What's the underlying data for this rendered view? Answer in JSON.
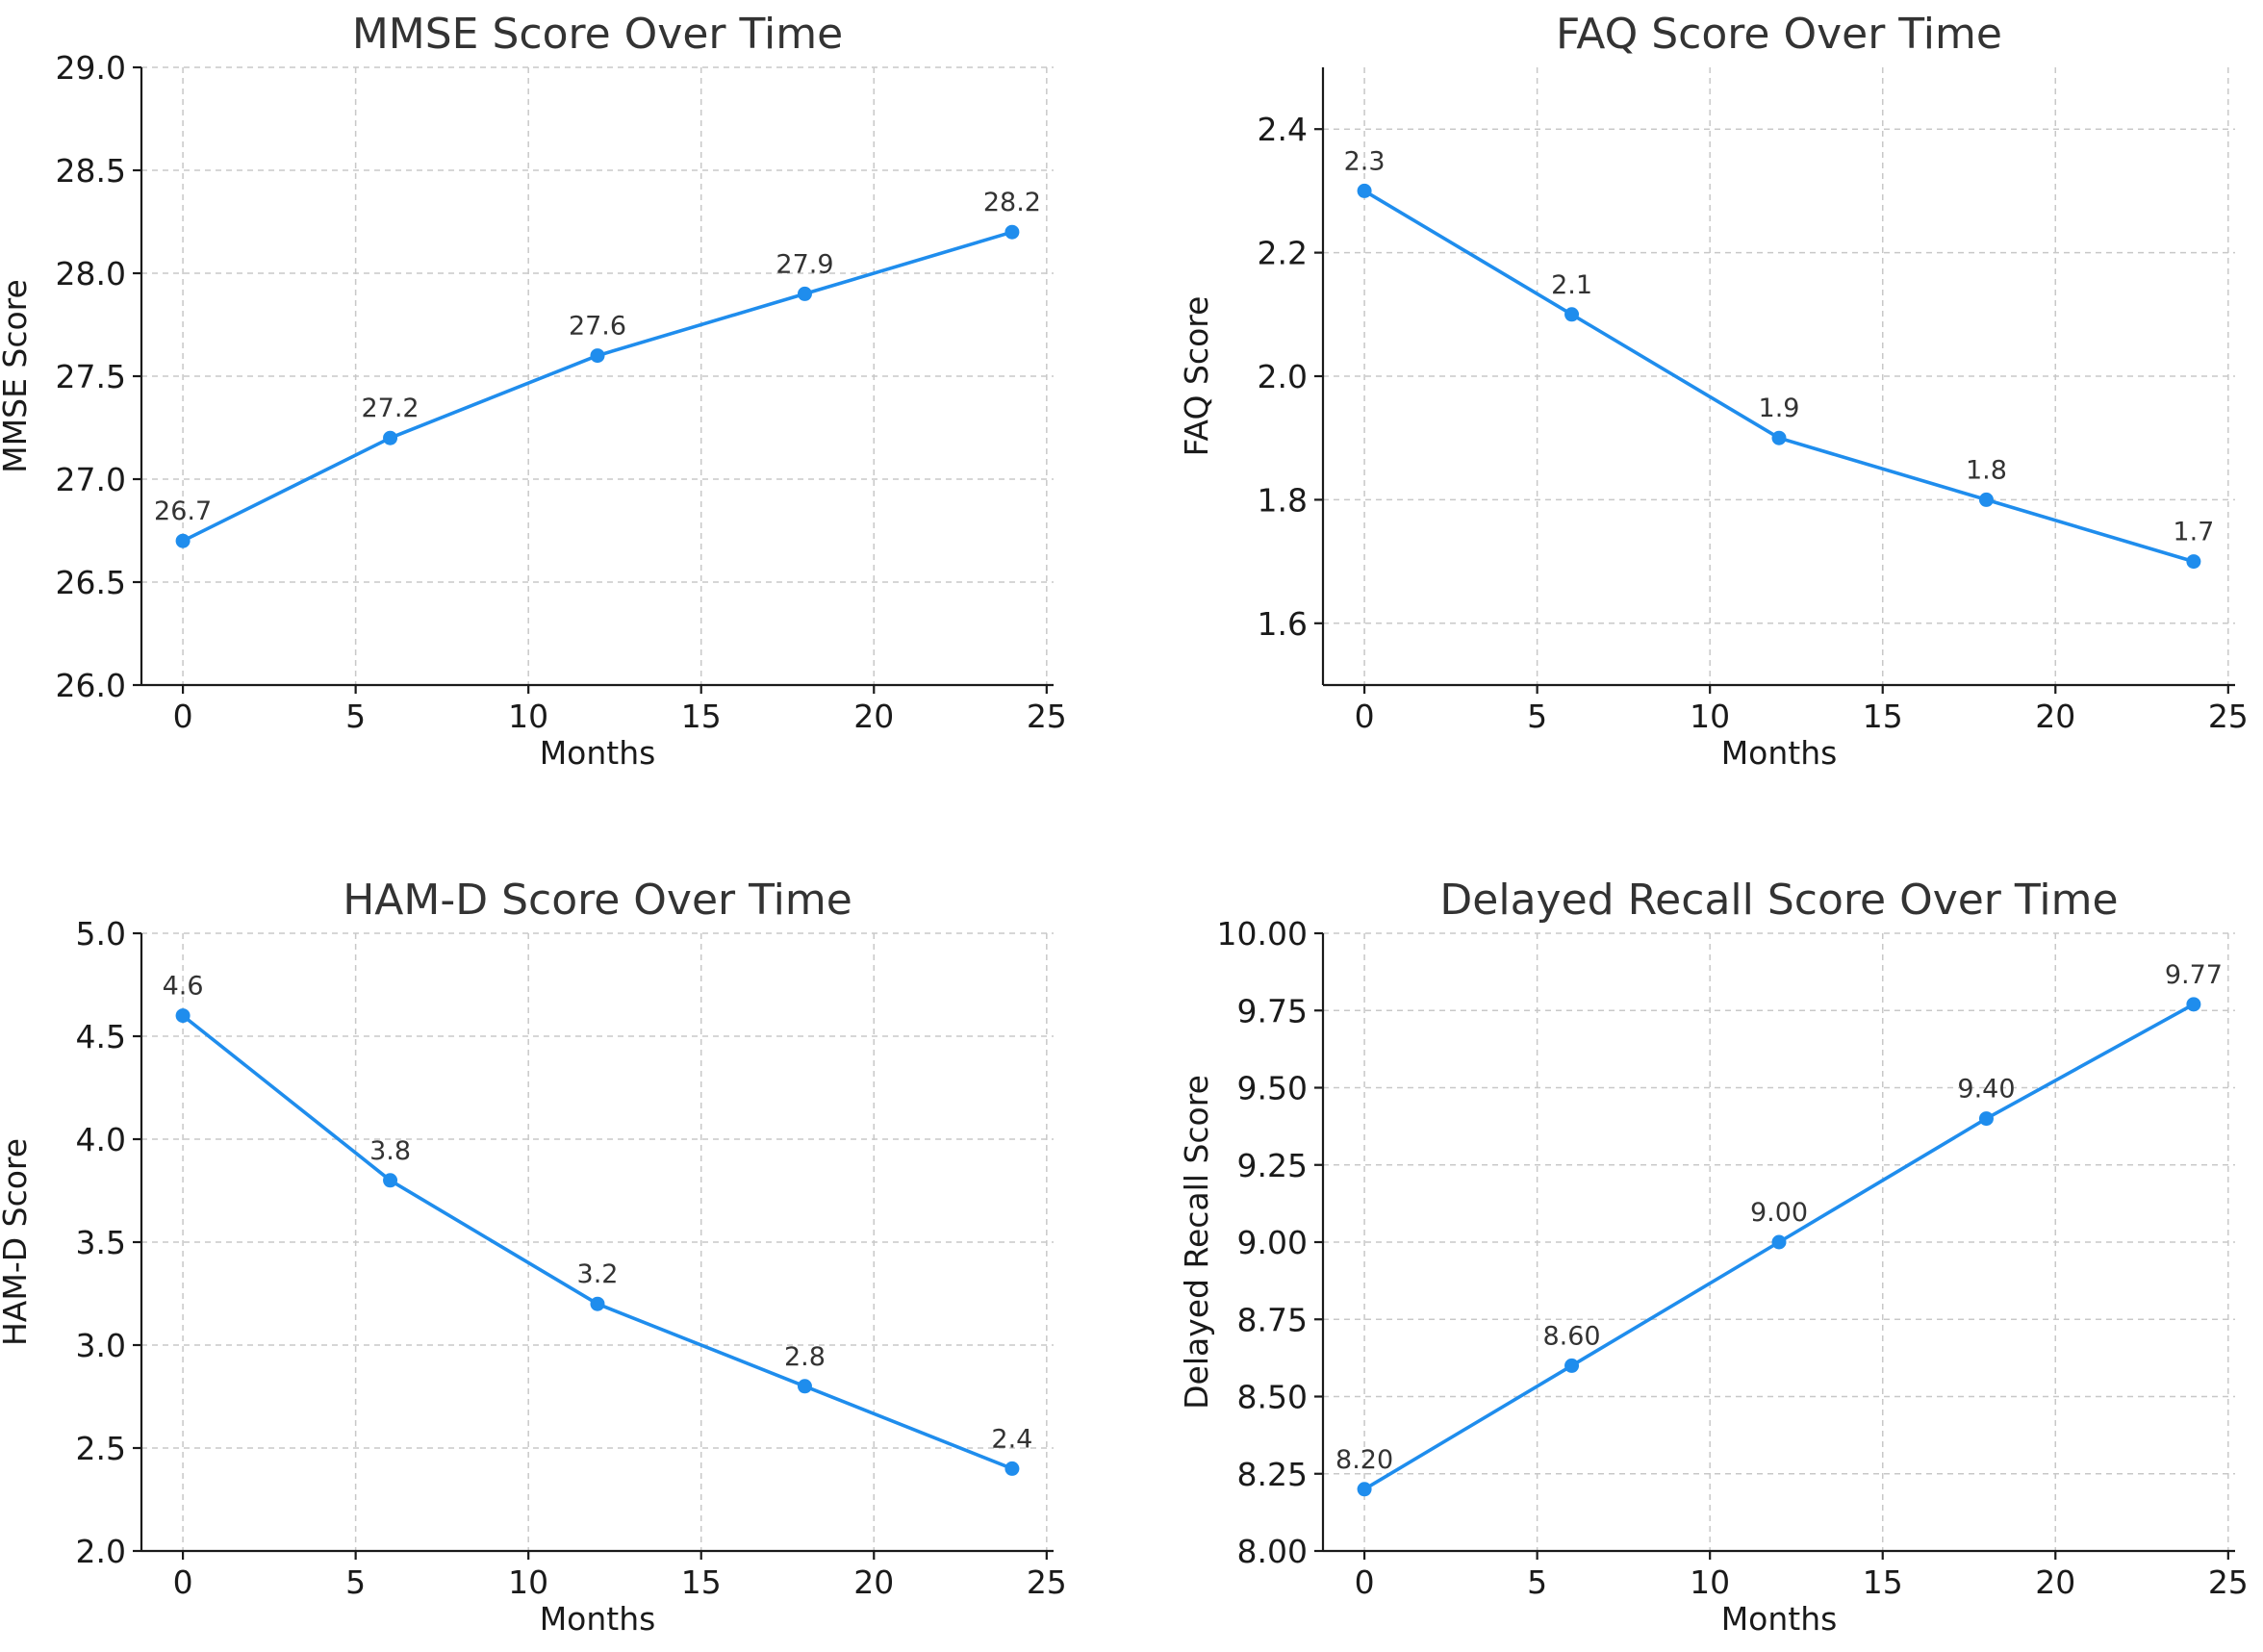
{
  "chart_data": [
    {
      "type": "line",
      "title": "MMSE Score Over Time",
      "xlabel": "Months",
      "ylabel": "MMSE Score",
      "x": [
        0,
        6,
        12,
        18,
        24
      ],
      "series": [
        {
          "values": [
            26.7,
            27.2,
            27.6,
            27.9,
            28.2
          ]
        }
      ],
      "data_labels": [
        "26.7",
        "27.2",
        "27.6",
        "27.9",
        "28.2"
      ],
      "xlim": [
        -1.2,
        25.2
      ],
      "ylim": [
        26.0,
        29.0
      ],
      "xticks": [
        0,
        5,
        10,
        15,
        20,
        25
      ],
      "xtick_labels": [
        "0",
        "5",
        "10",
        "15",
        "20",
        "25"
      ],
      "yticks": [
        26.0,
        26.5,
        27.0,
        27.5,
        28.0,
        28.5,
        29.0
      ],
      "ytick_labels": [
        "26.0",
        "26.5",
        "27.0",
        "27.5",
        "28.0",
        "28.5",
        "29.0"
      ],
      "grid": true,
      "line_color": "#1f8ded"
    },
    {
      "type": "line",
      "title": "FAQ Score Over Time",
      "xlabel": "Months",
      "ylabel": "FAQ Score",
      "x": [
        0,
        6,
        12,
        18,
        24
      ],
      "series": [
        {
          "values": [
            2.3,
            2.1,
            1.9,
            1.8,
            1.7
          ]
        }
      ],
      "data_labels": [
        "2.3",
        "2.1",
        "1.9",
        "1.8",
        "1.7"
      ],
      "xlim": [
        -1.2,
        25.2
      ],
      "ylim": [
        1.5,
        2.5
      ],
      "xticks": [
        0,
        5,
        10,
        15,
        20,
        25
      ],
      "xtick_labels": [
        "0",
        "5",
        "10",
        "15",
        "20",
        "25"
      ],
      "yticks": [
        1.6,
        1.8,
        2.0,
        2.2,
        2.4
      ],
      "ytick_labels": [
        "1.6",
        "1.8",
        "2.0",
        "2.2",
        "2.4"
      ],
      "grid": true,
      "line_color": "#1f8ded"
    },
    {
      "type": "line",
      "title": "HAM-D Score Over Time",
      "xlabel": "Months",
      "ylabel": "HAM-D Score",
      "x": [
        0,
        6,
        12,
        18,
        24
      ],
      "series": [
        {
          "values": [
            4.6,
            3.8,
            3.2,
            2.8,
            2.4
          ]
        }
      ],
      "data_labels": [
        "4.6",
        "3.8",
        "3.2",
        "2.8",
        "2.4"
      ],
      "xlim": [
        -1.2,
        25.2
      ],
      "ylim": [
        2.0,
        5.0
      ],
      "xticks": [
        0,
        5,
        10,
        15,
        20,
        25
      ],
      "xtick_labels": [
        "0",
        "5",
        "10",
        "15",
        "20",
        "25"
      ],
      "yticks": [
        2.0,
        2.5,
        3.0,
        3.5,
        4.0,
        4.5,
        5.0
      ],
      "ytick_labels": [
        "2.0",
        "2.5",
        "3.0",
        "3.5",
        "4.0",
        "4.5",
        "5.0"
      ],
      "grid": true,
      "line_color": "#1f8ded"
    },
    {
      "type": "line",
      "title": "Delayed Recall Score Over Time",
      "xlabel": "Months",
      "ylabel": "Delayed Recall Score",
      "x": [
        0,
        6,
        12,
        18,
        24
      ],
      "series": [
        {
          "values": [
            8.2,
            8.6,
            9.0,
            9.4,
            9.77
          ]
        }
      ],
      "data_labels": [
        "8.20",
        "8.60",
        "9.00",
        "9.40",
        "9.77"
      ],
      "xlim": [
        -1.2,
        25.2
      ],
      "ylim": [
        8.0,
        10.0
      ],
      "xticks": [
        0,
        5,
        10,
        15,
        20,
        25
      ],
      "xtick_labels": [
        "0",
        "5",
        "10",
        "15",
        "20",
        "25"
      ],
      "yticks": [
        8.0,
        8.25,
        8.5,
        8.75,
        9.0,
        9.25,
        9.5,
        9.75,
        10.0
      ],
      "ytick_labels": [
        "8.00",
        "8.25",
        "8.50",
        "8.75",
        "9.00",
        "9.25",
        "9.50",
        "9.75",
        "10.00"
      ],
      "grid": true,
      "line_color": "#1f8ded"
    }
  ]
}
